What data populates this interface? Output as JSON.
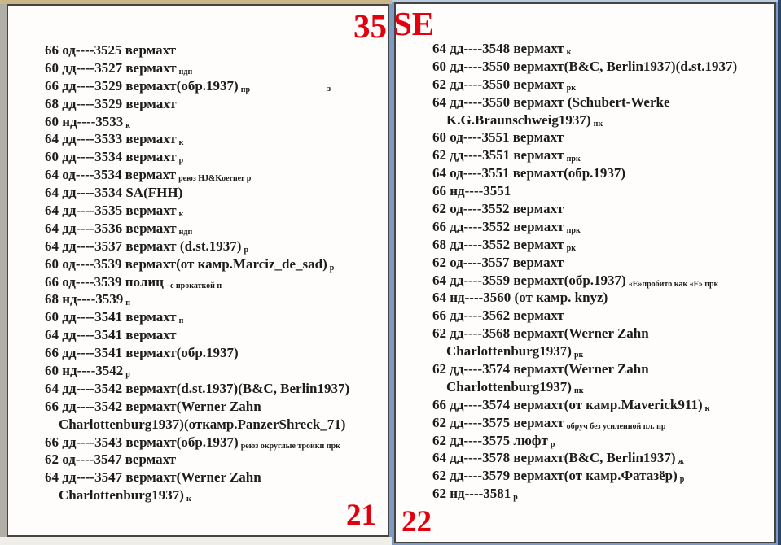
{
  "accent_red": "#e3000e",
  "left_page": {
    "corner_label": "35",
    "page_number": "21",
    "entries": [
      {
        "main": "66 од----3525 вермахт"
      },
      {
        "main": "60 дд----3527 вермахт",
        "sub": "ндп"
      },
      {
        "main": "66 дд----3529 вермахт(обр.1937)",
        "sub": "пр",
        "sub2": "з"
      },
      {
        "main": "68 дд----3529 вермахт"
      },
      {
        "main": "60 нд----3533",
        "sub": "к"
      },
      {
        "main": "64 дд----3533 вермахт",
        "sub": "к"
      },
      {
        "main": "60 дд----3534 вермахт",
        "sub": "р"
      },
      {
        "main": "64 од----3534 вермахт",
        "sub": "реюз  HJ&Koerner р"
      },
      {
        "main": "64 дд----3534 SA(FHH)"
      },
      {
        "main": "64 дд----3535 вермахт",
        "sub": "к"
      },
      {
        "main": "64 дд----3536 вермахт",
        "sub": "ндп"
      },
      {
        "main": "64 дд----3537 вермахт (d.st.1937)",
        "sub": "р"
      },
      {
        "main": "60 од----3539 вермахт(от камр.Marciz_de_sad)",
        "sub": "р"
      },
      {
        "main": "66 од----3539 полиц",
        "sub": "–с прокаткой п"
      },
      {
        "main": "68 нд----3539",
        "sub": "п"
      },
      {
        "main": "60 дд----3541 вермахт",
        "sub": "п"
      },
      {
        "main": "64 дд----3541 вермахт"
      },
      {
        "main": "66 дд----3541 вермахт(обр.1937)"
      },
      {
        "main": "60 нд----3542",
        "sub": "р"
      },
      {
        "main": "64 дд----3542 вермахт(d.st.1937)(B&C, Berlin1937)"
      },
      {
        "main": "66 дд----3542 вермахт(Werner Zahn",
        "cont": "Charlottenburg1937)(откамр.PanzerShreck_71)"
      },
      {
        "main": "66 дд----3543 вермахт(обр.1937)",
        "sub": "реюз  округлые тройки  прк"
      },
      {
        "main": "62 од----3547 вермахт"
      },
      {
        "main": "64 дд----3547 вермахт(Werner Zahn",
        "cont": "Charlottenburg1937)",
        "cont_sub": "к"
      }
    ]
  },
  "right_page": {
    "corner_label": "SE",
    "page_number": "22",
    "entries": [
      {
        "main": "64 дд----3548 вермахт",
        "sub": "к"
      },
      {
        "main": "60 дд----3550 вермахт(B&C, Berlin1937)(d.st.1937)"
      },
      {
        "main": "62 дд----3550 вермахт",
        "sub": "рк"
      },
      {
        "main": "64 дд----3550 вермахт (Schubert-Werke",
        "cont": "K.G.Braunschweig1937)",
        "cont_sub": "пк"
      },
      {
        "main": "60 од----3551 вермахт"
      },
      {
        "main": "62 дд----3551 вермахт",
        "sub": "прк"
      },
      {
        "main": "64 од----3551 вермахт(обр.1937)"
      },
      {
        "main": "66 нд----3551"
      },
      {
        "main": "62 од----3552 вермахт"
      },
      {
        "main": "66 дд----3552 вермахт",
        "sub": "прк"
      },
      {
        "main": "68 дд----3552 вермахт",
        "sub": "рк"
      },
      {
        "main": "62 од----3557 вермахт"
      },
      {
        "main": "64 дд----3559 вермахт(обр.1937)",
        "sub": "«Е»пробито как «F» прк"
      },
      {
        "main": "64 нд----3560 (от камр. knyz)"
      },
      {
        "main": "66 дд----3562 вермахт"
      },
      {
        "main": "62 дд----3568 вермахт(Werner Zahn",
        "cont": "Charlottenburg1937)",
        "cont_sub": "рк"
      },
      {
        "main": "62 дд----3574 вермахт(Werner Zahn",
        "cont": "Charlottenburg1937)",
        "cont_sub": "пк"
      },
      {
        "main": "66 дд----3574 вермахт(от камр.Maverick911)",
        "sub": "к"
      },
      {
        "main": "62 дд----3575 вермахт",
        "sub": "обруч без усиленной пл. пр"
      },
      {
        "main": "62 дд----3575 люфт",
        "sub": "р"
      },
      {
        "main": "64 дд----3578 вермахт(B&C, Berlin1937)",
        "sub": "ж"
      },
      {
        "main": "62 дд----3579 вермахт(от камр.Фатазёр)",
        "sub": "р"
      },
      {
        "main": "62 нд----3581",
        "sub": "р"
      }
    ]
  }
}
